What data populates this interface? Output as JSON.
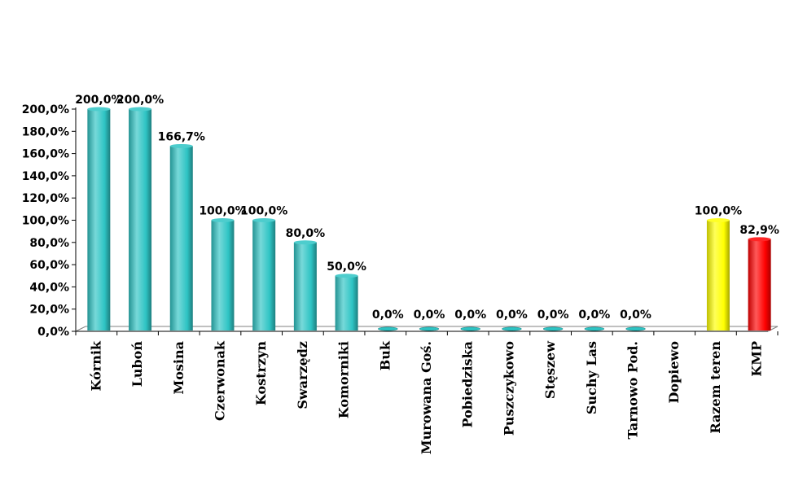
{
  "chart_data": {
    "type": "bar",
    "title": "",
    "xlabel": "",
    "ylabel": "",
    "ylim": [
      0,
      200
    ],
    "yticks": [
      "0,0%",
      "20,0%",
      "40,0%",
      "60,0%",
      "80,0%",
      "100,0%",
      "120,0%",
      "140,0%",
      "160,0%",
      "180,0%",
      "200,0%"
    ],
    "categories": [
      "Kórnik",
      "Luboń",
      "Mosina",
      "Czerwonak",
      "Kostrzyn",
      "Swarzędz",
      "Komorniki",
      "Buk",
      "Murowana Goś.",
      "Pobiedziska",
      "Puszczykowo",
      "Stęszew",
      "Suchy Las",
      "Tarnowo Pod.",
      "Dopiewo",
      "Razem teren",
      "KMP"
    ],
    "values": [
      200.0,
      200.0,
      166.7,
      100.0,
      100.0,
      80.0,
      50.0,
      0.0,
      0.0,
      0.0,
      0.0,
      0.0,
      0.0,
      0.0,
      null,
      100.0,
      82.9
    ],
    "value_labels": [
      "200,0%",
      "200,0%",
      "166,7%",
      "100,0%",
      "100,0%",
      "80,0%",
      "50,0%",
      "0,0%",
      "0,0%",
      "0,0%",
      "0,0%",
      "0,0%",
      "0,0%",
      "0,0%",
      "",
      "100,0%",
      "82,9%"
    ],
    "bar_colors": [
      "#2ec4c4",
      "#2ec4c4",
      "#2ec4c4",
      "#2ec4c4",
      "#2ec4c4",
      "#2ec4c4",
      "#2ec4c4",
      "#2ec4c4",
      "#2ec4c4",
      "#2ec4c4",
      "#2ec4c4",
      "#2ec4c4",
      "#2ec4c4",
      "#2ec4c4",
      "#2ec4c4",
      "#ffff00",
      "#ff0000"
    ],
    "grid": false,
    "legend": "none"
  }
}
